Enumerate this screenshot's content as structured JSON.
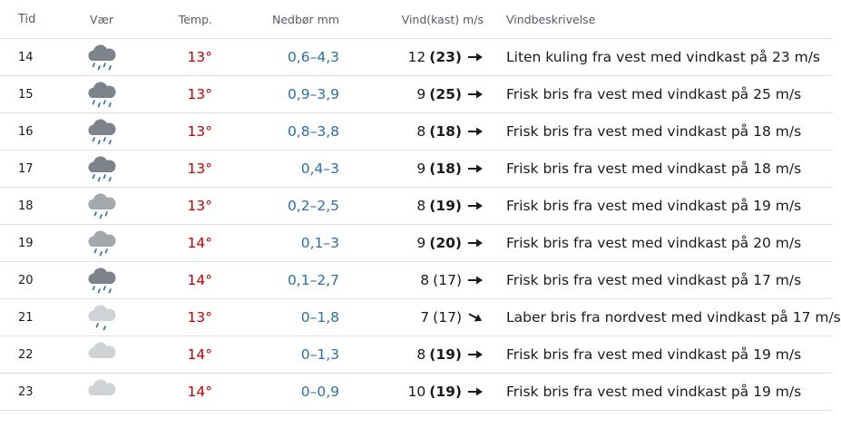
{
  "header": {
    "time": "Tid",
    "weather": "Vær",
    "temp": "Temp.",
    "precip": "Nedbør mm",
    "wind": "Vind(kast) m/s",
    "description": "Vindbeskrivelse"
  },
  "rows": [
    {
      "time": "14",
      "icon": "rain-heavy-cloud-icon",
      "temp": "13°",
      "precip": "0,6–4,3",
      "wind": "12",
      "gust": "(23)",
      "gust_bold": true,
      "direction": "east",
      "description": "Liten kuling fra vest med vindkast på 23 m/s"
    },
    {
      "time": "15",
      "icon": "rain-heavy-cloud-icon",
      "temp": "13°",
      "precip": "0,9–3,9",
      "wind": "9",
      "gust": "(25)",
      "gust_bold": true,
      "direction": "east",
      "description": "Frisk bris fra vest med vindkast på 25 m/s"
    },
    {
      "time": "16",
      "icon": "rain-heavy-cloud-icon",
      "temp": "13°",
      "precip": "0,8–3,8",
      "wind": "8",
      "gust": "(18)",
      "gust_bold": true,
      "direction": "east",
      "description": "Frisk bris fra vest med vindkast på 18 m/s"
    },
    {
      "time": "17",
      "icon": "rain-heavy-cloud-icon",
      "temp": "13°",
      "precip": "0,4–3",
      "wind": "9",
      "gust": "(18)",
      "gust_bold": true,
      "direction": "east",
      "description": "Frisk bris fra vest med vindkast på 18 m/s"
    },
    {
      "time": "18",
      "icon": "rain-cloud-icon",
      "temp": "13°",
      "precip": "0,2–2,5",
      "wind": "8",
      "gust": "(19)",
      "gust_bold": true,
      "direction": "east",
      "description": "Frisk bris fra vest med vindkast på 19 m/s"
    },
    {
      "time": "19",
      "icon": "rain-cloud-icon",
      "temp": "14°",
      "precip": "0,1–3",
      "wind": "9",
      "gust": "(20)",
      "gust_bold": true,
      "direction": "east",
      "description": "Frisk bris fra vest med vindkast på 20 m/s"
    },
    {
      "time": "20",
      "icon": "rain-heavy-cloud-icon",
      "temp": "14°",
      "precip": "0,1–2,7",
      "wind": "8",
      "gust": "(17)",
      "gust_bold": false,
      "direction": "east",
      "description": "Frisk bris fra vest med vindkast på 17 m/s"
    },
    {
      "time": "21",
      "icon": "light-rain-cloud-icon",
      "temp": "13°",
      "precip": "0–1,8",
      "wind": "7",
      "gust": "(17)",
      "gust_bold": false,
      "direction": "southeast",
      "description": "Laber bris fra nordvest med vindkast på 17 m/s"
    },
    {
      "time": "22",
      "icon": "cloud-icon",
      "temp": "14°",
      "precip": "0–1,3",
      "wind": "8",
      "gust": "(19)",
      "gust_bold": true,
      "direction": "east",
      "description": "Frisk bris fra vest med vindkast på 19 m/s"
    },
    {
      "time": "23",
      "icon": "cloud-icon",
      "temp": "14°",
      "precip": "0–0,9",
      "wind": "10",
      "gust": "(19)",
      "gust_bold": true,
      "direction": "east",
      "description": "Frisk bris fra vest med vindkast på 19 m/s"
    }
  ],
  "colors": {
    "temp": "#c60000",
    "precip": "#2a6db4",
    "rain_drops": "#2a6db4",
    "cloud_dark": "#7d838a",
    "cloud_mid": "#a3a8ad",
    "cloud_light": "#d0d3d6"
  }
}
